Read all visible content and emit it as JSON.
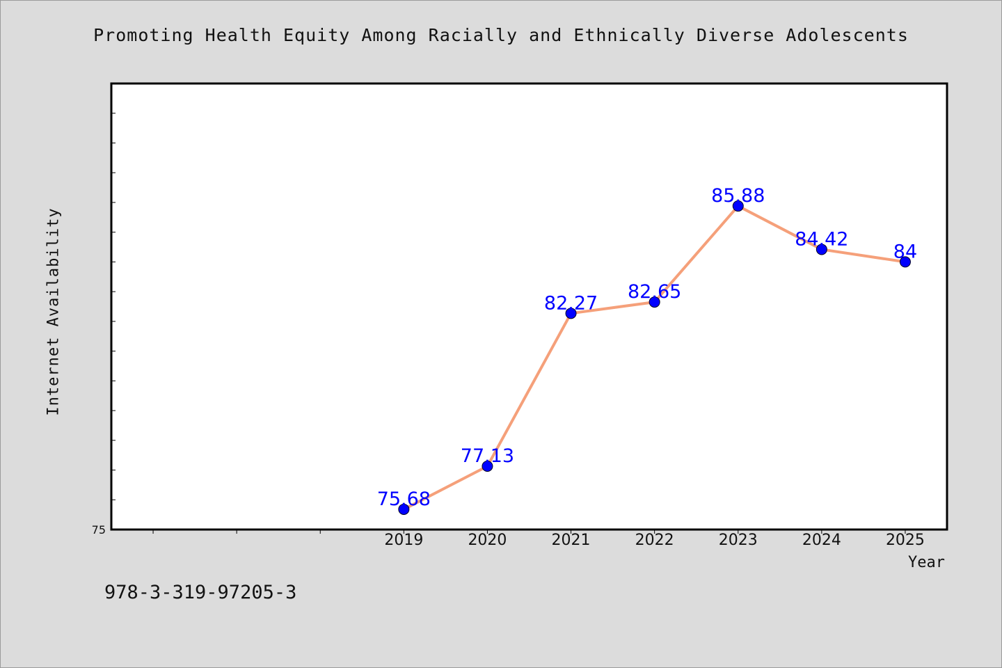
{
  "chart_data": {
    "type": "line",
    "title": "Promoting Health Equity Among Racially and Ethnically Diverse Adolescents",
    "xlabel": "Year",
    "ylabel": "Internet Availability",
    "x": [
      "2019",
      "2020",
      "2021",
      "2022",
      "2023",
      "2024",
      "2025"
    ],
    "series": [
      {
        "values": [
          75.68,
          77.13,
          82.27,
          82.65,
          85.88,
          84.42,
          84
        ],
        "labels": [
          "75.68",
          "77.13",
          "82.27",
          "82.65",
          "85.88",
          "84.42",
          "84"
        ]
      }
    ],
    "ytick_labels": [
      "75"
    ],
    "ylim": [
      75,
      90
    ],
    "xlim": [
      2015.5,
      2025.5
    ],
    "grid": false,
    "legend": "none",
    "line_color": "#f5a07a",
    "marker_color": "#0000ff",
    "label_color": "#0000ff"
  },
  "footer": {
    "isbn": "978-3-319-97205-3"
  }
}
